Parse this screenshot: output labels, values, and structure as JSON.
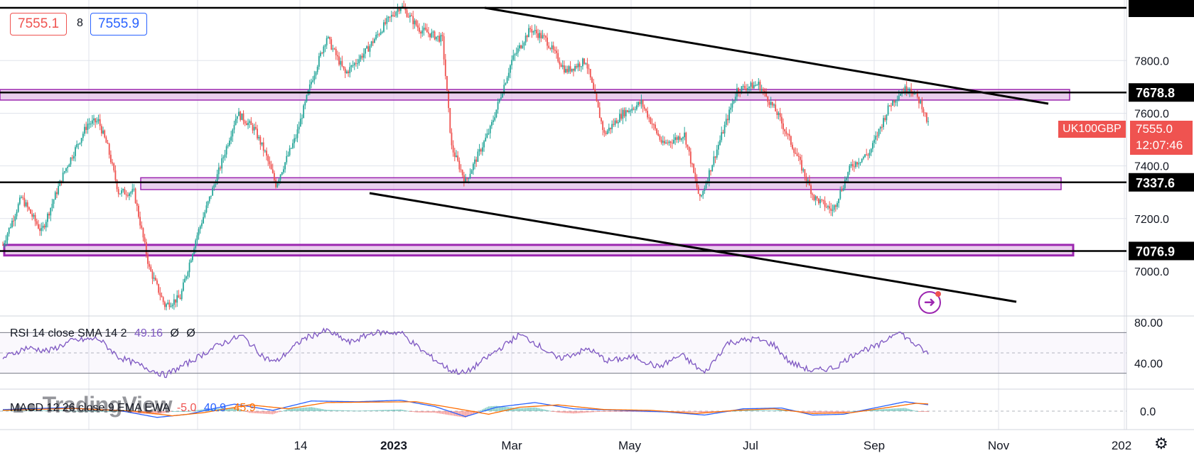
{
  "quote": {
    "bid": "7555.1",
    "spread": "8",
    "ask": "7555.9"
  },
  "symbol_badge": {
    "name": "UK100GBP",
    "price": "7555.0",
    "countdown": "12:07:46"
  },
  "price_labels": [
    "7678.8",
    "7337.6",
    "7076.9"
  ],
  "rsi_legend": {
    "label": "RSI 14 close SMA 14 2",
    "value": "49.16",
    "extra1": "Ø",
    "extra2": "Ø"
  },
  "macd_legend": {
    "label": "MACD 12 26 close 9 EMA EWA",
    "hist": "-5.0",
    "macd": "40.9",
    "signal": "45.9"
  },
  "watermark": "TradingView",
  "colors": {
    "up": "#26a69a",
    "down": "#ef5350",
    "zone_fill": "#e1bee7",
    "zone_stroke": "#9c27b0",
    "rsi": "#7e57c2",
    "macd": "#2962ff",
    "signal": "#ff6d00",
    "badge": "#ef5350"
  },
  "chart_data": {
    "type": "candlestick",
    "symbol": "UK100GBP",
    "y_axis_ticks": [
      "7800.0",
      "7600.0",
      "7400.0",
      "7200.0",
      "7000.0"
    ],
    "x_axis_ticks": [
      "14",
      "2023",
      "Mar",
      "May",
      "Jul",
      "Sep",
      "Nov",
      "202"
    ],
    "price_range": [
      6830,
      8030
    ],
    "horizontal_levels": [
      7678.8,
      7337.6,
      7076.9
    ],
    "price_path": [
      [
        0,
        7100
      ],
      [
        12,
        7280
      ],
      [
        25,
        7150
      ],
      [
        40,
        7380
      ],
      [
        55,
        7560
      ],
      [
        62,
        7570
      ],
      [
        68,
        7470
      ],
      [
        75,
        7300
      ],
      [
        85,
        7300
      ],
      [
        95,
        7010
      ],
      [
        105,
        6870
      ],
      [
        115,
        6900
      ],
      [
        125,
        7120
      ],
      [
        140,
        7380
      ],
      [
        152,
        7600
      ],
      [
        163,
        7540
      ],
      [
        170,
        7450
      ],
      [
        177,
        7330
      ],
      [
        190,
        7510
      ],
      [
        200,
        7720
      ],
      [
        210,
        7890
      ],
      [
        222,
        7750
      ],
      [
        236,
        7840
      ],
      [
        248,
        7940
      ],
      [
        258,
        8010
      ],
      [
        270,
        7920
      ],
      [
        285,
        7880
      ],
      [
        291,
        7470
      ],
      [
        300,
        7340
      ],
      [
        316,
        7540
      ],
      [
        330,
        7800
      ],
      [
        342,
        7920
      ],
      [
        352,
        7880
      ],
      [
        365,
        7760
      ],
      [
        378,
        7800
      ],
      [
        390,
        7520
      ],
      [
        402,
        7600
      ],
      [
        414,
        7640
      ],
      [
        428,
        7480
      ],
      [
        442,
        7520
      ],
      [
        452,
        7270
      ],
      [
        464,
        7480
      ],
      [
        476,
        7690
      ],
      [
        490,
        7710
      ],
      [
        502,
        7600
      ],
      [
        514,
        7450
      ],
      [
        526,
        7280
      ],
      [
        538,
        7230
      ],
      [
        550,
        7400
      ],
      [
        562,
        7450
      ],
      [
        575,
        7630
      ],
      [
        582,
        7680
      ],
      [
        588,
        7700
      ],
      [
        596,
        7630
      ],
      [
        600,
        7555
      ]
    ],
    "rsi": {
      "range": [
        20,
        80
      ],
      "levels": [
        70,
        30
      ],
      "ticks": [
        "80.00",
        "40.00"
      ],
      "path": [
        [
          0,
          45
        ],
        [
          15,
          55
        ],
        [
          30,
          52
        ],
        [
          45,
          62
        ],
        [
          62,
          64
        ],
        [
          75,
          46
        ],
        [
          92,
          36
        ],
        [
          105,
          28
        ],
        [
          120,
          40
        ],
        [
          140,
          58
        ],
        [
          155,
          67
        ],
        [
          170,
          45
        ],
        [
          177,
          41
        ],
        [
          195,
          64
        ],
        [
          210,
          72
        ],
        [
          225,
          60
        ],
        [
          240,
          70
        ],
        [
          258,
          70
        ],
        [
          272,
          52
        ],
        [
          290,
          33
        ],
        [
          300,
          30
        ],
        [
          320,
          52
        ],
        [
          335,
          68
        ],
        [
          345,
          60
        ],
        [
          360,
          44
        ],
        [
          380,
          54
        ],
        [
          392,
          42
        ],
        [
          410,
          46
        ],
        [
          425,
          36
        ],
        [
          440,
          48
        ],
        [
          455,
          30
        ],
        [
          470,
          60
        ],
        [
          488,
          64
        ],
        [
          500,
          58
        ],
        [
          510,
          41
        ],
        [
          525,
          32
        ],
        [
          540,
          36
        ],
        [
          555,
          52
        ],
        [
          568,
          57
        ],
        [
          580,
          72
        ],
        [
          590,
          60
        ],
        [
          600,
          49
        ]
      ]
    },
    "macd": {
      "ticks": [
        "0.0"
      ],
      "macd_path": [
        [
          0,
          10
        ],
        [
          40,
          22
        ],
        [
          75,
          5
        ],
        [
          100,
          -40
        ],
        [
          120,
          -20
        ],
        [
          150,
          45
        ],
        [
          175,
          5
        ],
        [
          200,
          65
        ],
        [
          230,
          60
        ],
        [
          258,
          70
        ],
        [
          280,
          30
        ],
        [
          300,
          -35
        ],
        [
          320,
          25
        ],
        [
          345,
          55
        ],
        [
          370,
          15
        ],
        [
          400,
          5
        ],
        [
          430,
          -5
        ],
        [
          455,
          -25
        ],
        [
          480,
          15
        ],
        [
          505,
          20
        ],
        [
          525,
          -25
        ],
        [
          545,
          -20
        ],
        [
          565,
          20
        ],
        [
          585,
          60
        ],
        [
          600,
          41
        ]
      ],
      "signal_path": [
        [
          0,
          5
        ],
        [
          45,
          18
        ],
        [
          85,
          0
        ],
        [
          110,
          -30
        ],
        [
          130,
          -10
        ],
        [
          160,
          40
        ],
        [
          185,
          15
        ],
        [
          210,
          55
        ],
        [
          240,
          58
        ],
        [
          268,
          60
        ],
        [
          295,
          15
        ],
        [
          315,
          -20
        ],
        [
          335,
          25
        ],
        [
          360,
          40
        ],
        [
          390,
          10
        ],
        [
          420,
          5
        ],
        [
          450,
          -15
        ],
        [
          475,
          5
        ],
        [
          500,
          15
        ],
        [
          525,
          -15
        ],
        [
          550,
          -10
        ],
        [
          575,
          25
        ],
        [
          592,
          50
        ],
        [
          600,
          46
        ]
      ]
    },
    "total_bars": 600
  }
}
